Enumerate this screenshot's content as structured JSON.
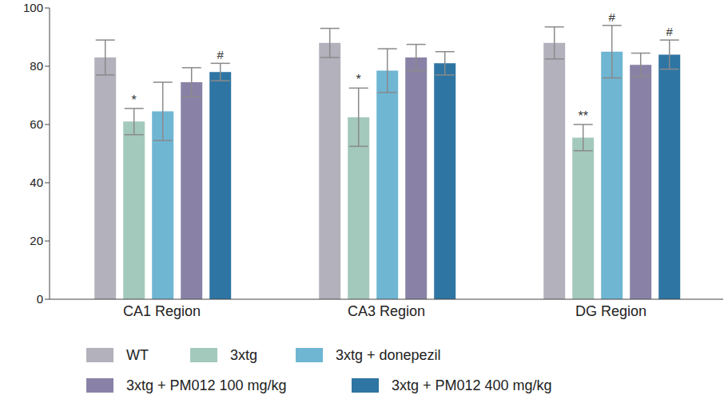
{
  "chart_data": {
    "type": "bar",
    "categories": [
      "CA1 Region",
      "CA3 Region",
      "DG Region"
    ],
    "series": [
      {
        "name": "WT",
        "color": "#b3b1bc",
        "values": [
          83,
          88,
          88
        ],
        "errors": [
          6,
          5,
          5.5
        ],
        "annotations": [
          null,
          null,
          null
        ]
      },
      {
        "name": "3xtg",
        "color": "#a3c9bc",
        "values": [
          61,
          62.5,
          55.5
        ],
        "errors": [
          4.5,
          10,
          4.5
        ],
        "annotations": [
          "*",
          "*",
          "**"
        ]
      },
      {
        "name": "3xtg + donepezil",
        "color": "#6fb6d3",
        "values": [
          64.5,
          78.5,
          85
        ],
        "errors": [
          10,
          7.5,
          9
        ],
        "annotations": [
          null,
          null,
          "#"
        ]
      },
      {
        "name": "3xtg + PM012 100 mg/kg",
        "color": "#8a82a6",
        "values": [
          74.5,
          83,
          80.5
        ],
        "errors": [
          5,
          4.5,
          4
        ],
        "annotations": [
          null,
          null,
          null
        ]
      },
      {
        "name": "3xtg + PM012 400 mg/kg",
        "color": "#2f75a3",
        "values": [
          78,
          81,
          84
        ],
        "errors": [
          3,
          4,
          5
        ],
        "annotations": [
          "#",
          null,
          "#"
        ]
      }
    ],
    "ylim": [
      0,
      100
    ],
    "yticks": [
      0,
      20,
      40,
      60,
      80,
      100
    ],
    "grid": false,
    "legend": "bottom"
  }
}
